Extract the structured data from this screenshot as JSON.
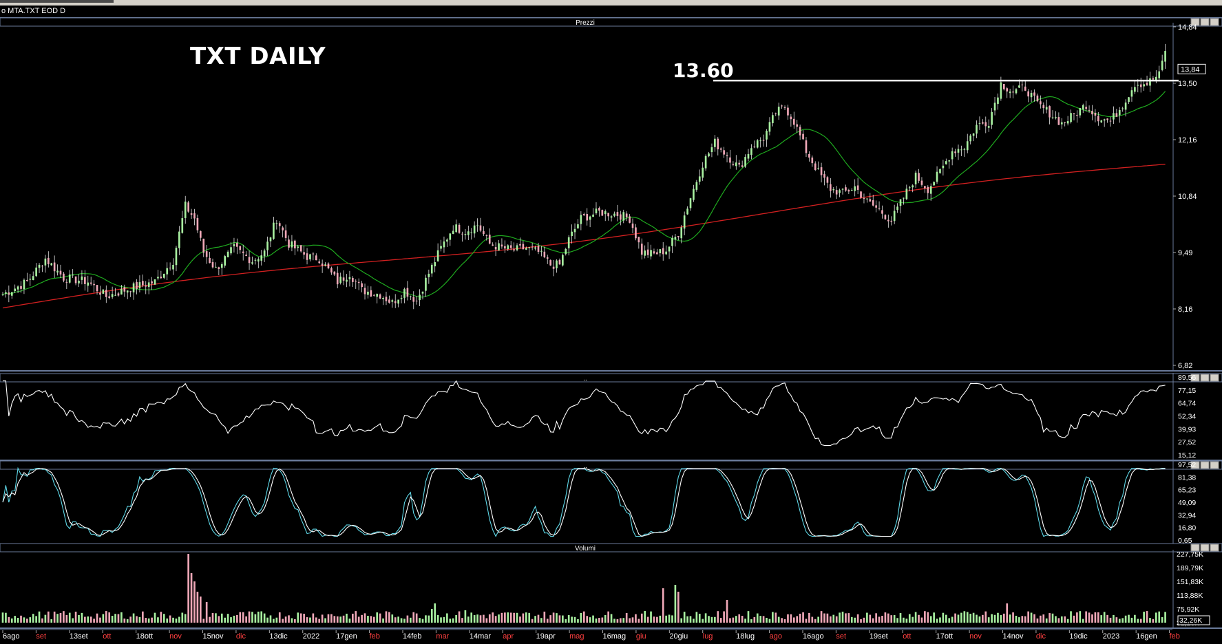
{
  "window": {
    "title": "o MTA.TXT EOD D"
  },
  "annotations": {
    "chart_title": "TXT DAILY",
    "resistance_label": "13.60"
  },
  "panels": {
    "price": {
      "header": "Prezzi",
      "ticks": [
        "14,84",
        "13,50",
        "12,16",
        "10,84",
        "9,49",
        "8,16",
        "6,82"
      ],
      "last_price": "13,84"
    },
    "rsi": {
      "header": "..",
      "ticks": [
        "89,56",
        "77,15",
        "64,74",
        "52,34",
        "39,93",
        "27,52",
        "15,12"
      ]
    },
    "stoch": {
      "header": "..",
      "ticks": [
        "97,52",
        "81,38",
        "65,23",
        "49,09",
        "32,94",
        "16,80",
        "0,65"
      ]
    },
    "volume": {
      "header": "Volumi",
      "ticks": [
        "227,75K",
        "189,79K",
        "151,83K",
        "113,88K",
        "75,92K",
        "32,26K"
      ],
      "last_volume": "32,26K"
    }
  },
  "x_axis": {
    "labels": [
      {
        "t": "6ago",
        "red": false
      },
      {
        "t": "set",
        "red": true
      },
      {
        "t": "13set",
        "red": false
      },
      {
        "t": "ott",
        "red": true
      },
      {
        "t": "18ott",
        "red": false
      },
      {
        "t": "nov",
        "red": true
      },
      {
        "t": "15nov",
        "red": false
      },
      {
        "t": "dic",
        "red": true
      },
      {
        "t": "13dic",
        "red": false
      },
      {
        "t": "2022",
        "red": false
      },
      {
        "t": "17gen",
        "red": false
      },
      {
        "t": "feb",
        "red": true
      },
      {
        "t": "14feb",
        "red": false
      },
      {
        "t": "mar",
        "red": true
      },
      {
        "t": "14mar",
        "red": false
      },
      {
        "t": "apr",
        "red": true
      },
      {
        "t": "19apr",
        "red": false
      },
      {
        "t": "mag",
        "red": true
      },
      {
        "t": "16mag",
        "red": false
      },
      {
        "t": "giu",
        "red": true
      },
      {
        "t": "20giu",
        "red": false
      },
      {
        "t": "lug",
        "red": true
      },
      {
        "t": "18lug",
        "red": false
      },
      {
        "t": "ago",
        "red": true
      },
      {
        "t": "16ago",
        "red": false
      },
      {
        "t": "set",
        "red": true
      },
      {
        "t": "19set",
        "red": false
      },
      {
        "t": "ott",
        "red": true
      },
      {
        "t": "17ott",
        "red": false
      },
      {
        "t": "nov",
        "red": true
      },
      {
        "t": "14nov",
        "red": false
      },
      {
        "t": "dic",
        "red": true
      },
      {
        "t": "19dic",
        "red": false
      },
      {
        "t": "2023",
        "red": false
      },
      {
        "t": "16gen",
        "red": false
      },
      {
        "t": "feb",
        "red": true
      }
    ]
  },
  "colors": {
    "up": "#a8f0a0",
    "down": "#f0a8b8",
    "ma_short": "#1faa1f",
    "ma_long": "#d22020",
    "osc": "#ffffff",
    "stoch_k": "#5fd8e8",
    "stoch_d": "#ffffff",
    "grid_border": "#6a7a9a"
  },
  "chart_data": {
    "type": "candlestick",
    "title": "TXT DAILY",
    "y_range": [
      6.82,
      14.84
    ],
    "resistance": 13.6,
    "price_anchors": [
      [
        0,
        8.5
      ],
      [
        8,
        8.8
      ],
      [
        14,
        9.35
      ],
      [
        20,
        8.9
      ],
      [
        28,
        8.8
      ],
      [
        34,
        8.45
      ],
      [
        42,
        8.65
      ],
      [
        50,
        8.8
      ],
      [
        56,
        9.3
      ],
      [
        60,
        10.6
      ],
      [
        63,
        10.3
      ],
      [
        66,
        9.5
      ],
      [
        70,
        9.1
      ],
      [
        76,
        9.6
      ],
      [
        82,
        9.3
      ],
      [
        86,
        9.5
      ],
      [
        90,
        10.3
      ],
      [
        94,
        9.7
      ],
      [
        100,
        9.4
      ],
      [
        104,
        9.35
      ],
      [
        110,
        8.8
      ],
      [
        114,
        9.0
      ],
      [
        118,
        8.6
      ],
      [
        124,
        8.5
      ],
      [
        128,
        8.3
      ],
      [
        132,
        8.6
      ],
      [
        136,
        8.35
      ],
      [
        140,
        9.0
      ],
      [
        144,
        9.6
      ],
      [
        148,
        10.1
      ],
      [
        152,
        10.0
      ],
      [
        156,
        10.15
      ],
      [
        160,
        9.7
      ],
      [
        164,
        9.6
      ],
      [
        168,
        9.55
      ],
      [
        172,
        9.6
      ],
      [
        176,
        9.5
      ],
      [
        180,
        9.2
      ],
      [
        183,
        9.2
      ],
      [
        186,
        9.8
      ],
      [
        190,
        10.3
      ],
      [
        196,
        10.45
      ],
      [
        202,
        10.4
      ],
      [
        206,
        10.3
      ],
      [
        210,
        9.5
      ],
      [
        214,
        9.45
      ],
      [
        218,
        9.55
      ],
      [
        222,
        9.95
      ],
      [
        226,
        10.8
      ],
      [
        230,
        11.6
      ],
      [
        234,
        12.1
      ],
      [
        238,
        11.8
      ],
      [
        242,
        11.5
      ],
      [
        246,
        12.0
      ],
      [
        250,
        12.2
      ],
      [
        254,
        12.8
      ],
      [
        257,
        12.95
      ],
      [
        260,
        12.6
      ],
      [
        264,
        11.9
      ],
      [
        268,
        11.4
      ],
      [
        272,
        11.0
      ],
      [
        276,
        10.9
      ],
      [
        280,
        11.05
      ],
      [
        284,
        10.7
      ],
      [
        288,
        10.5
      ],
      [
        292,
        10.25
      ],
      [
        296,
        10.8
      ],
      [
        300,
        11.3
      ],
      [
        304,
        11.0
      ],
      [
        308,
        11.4
      ],
      [
        312,
        11.9
      ],
      [
        316,
        12.0
      ],
      [
        320,
        12.5
      ],
      [
        324,
        12.6
      ],
      [
        328,
        13.5
      ],
      [
        332,
        13.3
      ],
      [
        336,
        13.4
      ],
      [
        340,
        13.0
      ],
      [
        344,
        12.8
      ],
      [
        348,
        12.55
      ],
      [
        352,
        12.75
      ],
      [
        356,
        13.0
      ],
      [
        360,
        12.7
      ],
      [
        364,
        12.6
      ],
      [
        368,
        13.0
      ],
      [
        372,
        13.5
      ],
      [
        376,
        13.5
      ],
      [
        380,
        13.7
      ],
      [
        382,
        14.3
      ]
    ],
    "sessions": 383
  }
}
